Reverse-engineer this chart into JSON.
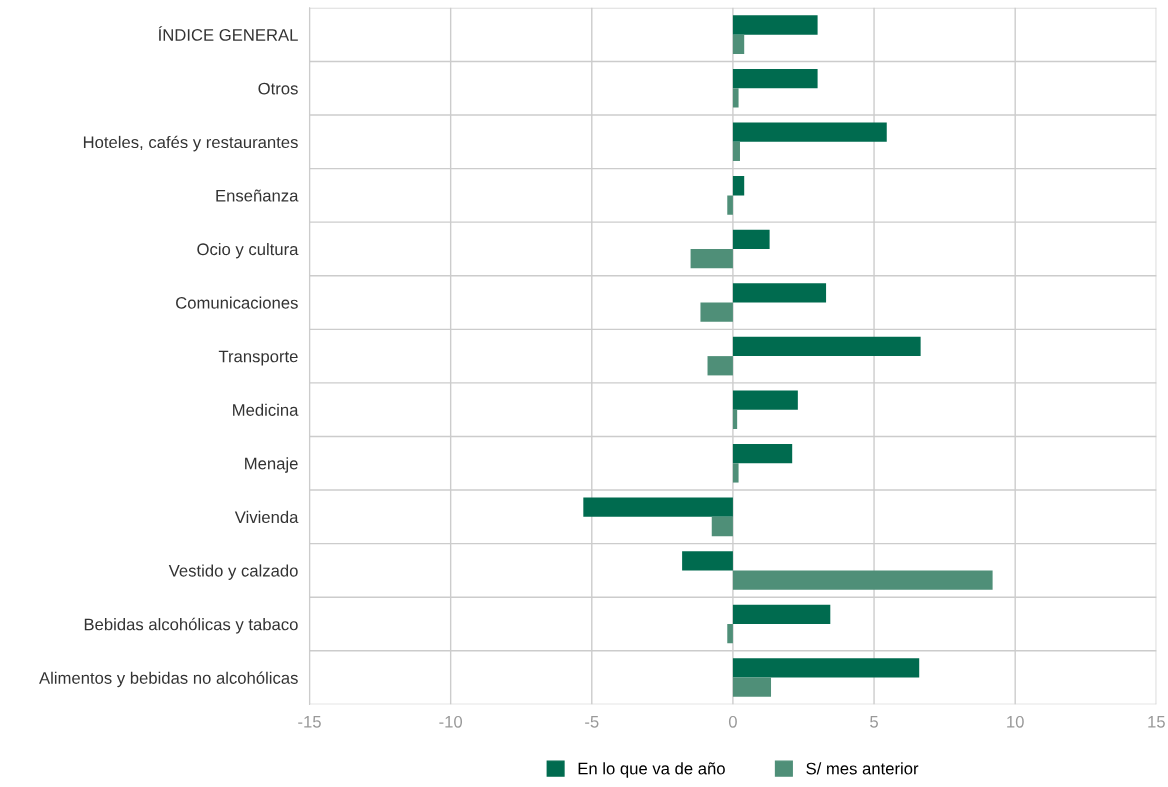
{
  "chart_data": {
    "type": "bar",
    "orientation": "horizontal",
    "categories": [
      "ÍNDICE GENERAL",
      "Otros",
      "Hoteles, cafés y restaurantes",
      "Enseñanza",
      "Ocio y cultura",
      "Comunicaciones",
      "Transporte",
      "Medicina",
      "Menaje",
      "Vivienda",
      "Vestido y calzado",
      "Bebidas alcohólicas y tabaco",
      "Alimentos y bebidas no alcohólicas"
    ],
    "series": [
      {
        "name": "En lo que va de año",
        "color": "#006b4f",
        "values": [
          3.0,
          3.0,
          5.45,
          0.4,
          1.3,
          3.3,
          6.65,
          2.3,
          2.1,
          -5.3,
          -1.8,
          3.45,
          6.6
        ]
      },
      {
        "name": "S/ mes anterior",
        "color": "#4f8f78",
        "values": [
          0.4,
          0.2,
          0.25,
          -0.2,
          -1.5,
          -1.15,
          -0.9,
          0.15,
          0.2,
          -0.75,
          9.2,
          -0.2,
          1.35
        ]
      }
    ],
    "xlim": [
      -15,
      15
    ],
    "xticks": [
      -15,
      -10,
      -5,
      0,
      5,
      10,
      15
    ],
    "grid": true,
    "legend": "bottom"
  }
}
